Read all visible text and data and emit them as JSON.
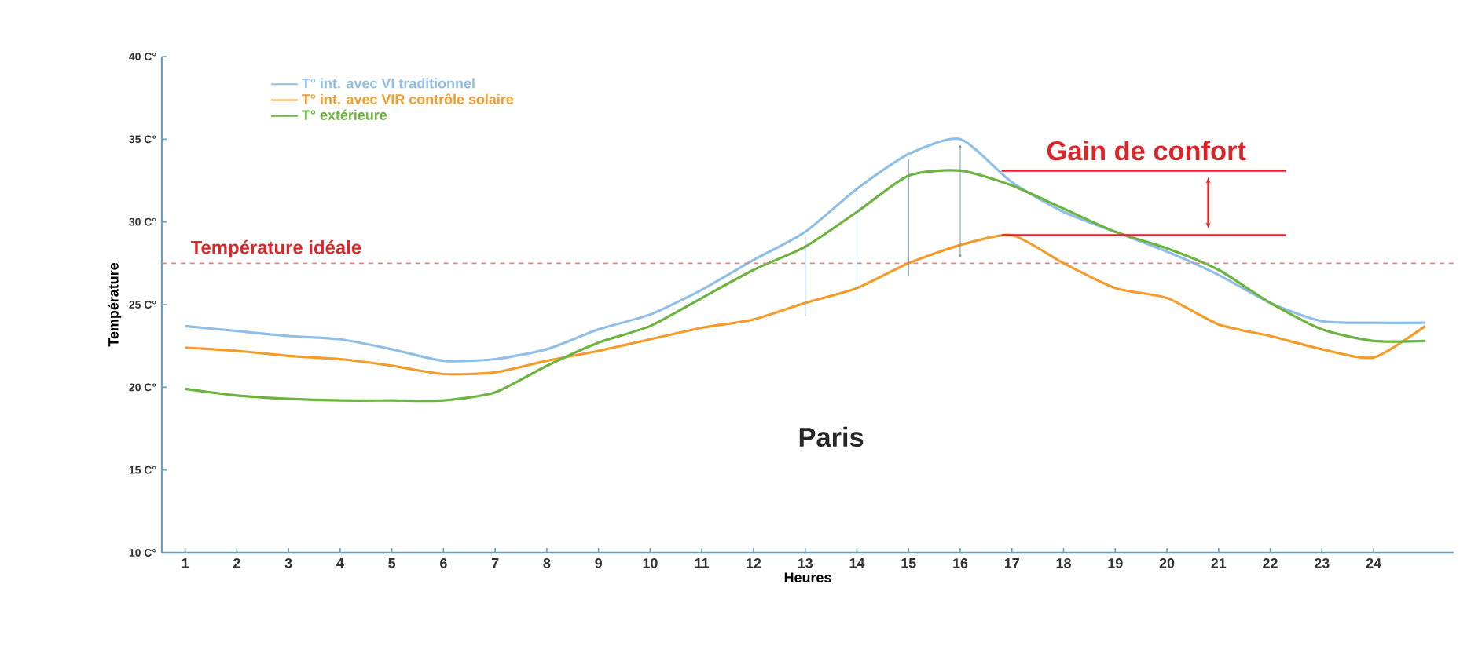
{
  "chart_data": {
    "type": "line",
    "xlabel": "Heures",
    "ylabel": "Température",
    "x": [
      1,
      2,
      3,
      4,
      5,
      6,
      7,
      8,
      9,
      10,
      11,
      12,
      13,
      14,
      15,
      16,
      17,
      18,
      19,
      20,
      21,
      22,
      23,
      24,
      25
    ],
    "series": [
      {
        "name": "T° int. avec VI traditionnel",
        "color": "#8fbfe6",
        "values": [
          23.7,
          23.4,
          23.1,
          22.9,
          22.3,
          21.6,
          21.7,
          22.3,
          23.5,
          24.4,
          25.9,
          27.7,
          29.4,
          32.0,
          34.1,
          35.0,
          32.4,
          30.6,
          29.4,
          28.2,
          26.8,
          25.1,
          24.0,
          23.9,
          23.9
        ]
      },
      {
        "name": "T° int. avec VIR contrôle solaire",
        "color": "#f39c2b",
        "values": [
          22.4,
          22.2,
          21.9,
          21.7,
          21.3,
          20.8,
          20.9,
          21.6,
          22.2,
          22.9,
          23.6,
          24.1,
          25.1,
          26.0,
          27.5,
          28.6,
          29.2,
          27.5,
          26.0,
          25.4,
          23.8,
          23.1,
          22.3,
          21.8,
          23.7
        ]
      },
      {
        "name": "T° extérieure",
        "color": "#6cb33f",
        "values": [
          19.9,
          19.5,
          19.3,
          19.2,
          19.2,
          19.2,
          19.7,
          21.3,
          22.7,
          23.7,
          25.4,
          27.1,
          28.5,
          30.6,
          32.8,
          33.1,
          32.2,
          30.8,
          29.4,
          28.4,
          27.1,
          25.1,
          23.5,
          22.8,
          22.8
        ]
      }
    ],
    "xlim": [
      0.55,
      25.55
    ],
    "xticks": [
      1,
      2,
      3,
      4,
      5,
      6,
      7,
      8,
      9,
      10,
      11,
      12,
      13,
      14,
      15,
      16,
      17,
      18,
      19,
      20,
      21,
      22,
      23,
      24
    ],
    "ylim": [
      10,
      40
    ],
    "yticks": [
      {
        "value": 10,
        "label": "10 C°"
      },
      {
        "value": 15,
        "label": "15 C°"
      },
      {
        "value": 20,
        "label": "20 C°"
      },
      {
        "value": 25,
        "label": "25 C°"
      },
      {
        "value": 30,
        "label": "30 C°"
      },
      {
        "value": 35,
        "label": "35 C°"
      },
      {
        "value": 40,
        "label": "40 C°"
      }
    ],
    "ref_lines": [
      {
        "axis": "y",
        "value": 27.5,
        "label": "Température idéale",
        "color": "#f08080",
        "line_style": "dashed"
      }
    ],
    "annotations": [
      "Gain de confort",
      "Paris"
    ],
    "legend": "top left",
    "grid": false,
    "marker": "none",
    "line_style": "solid"
  }
}
